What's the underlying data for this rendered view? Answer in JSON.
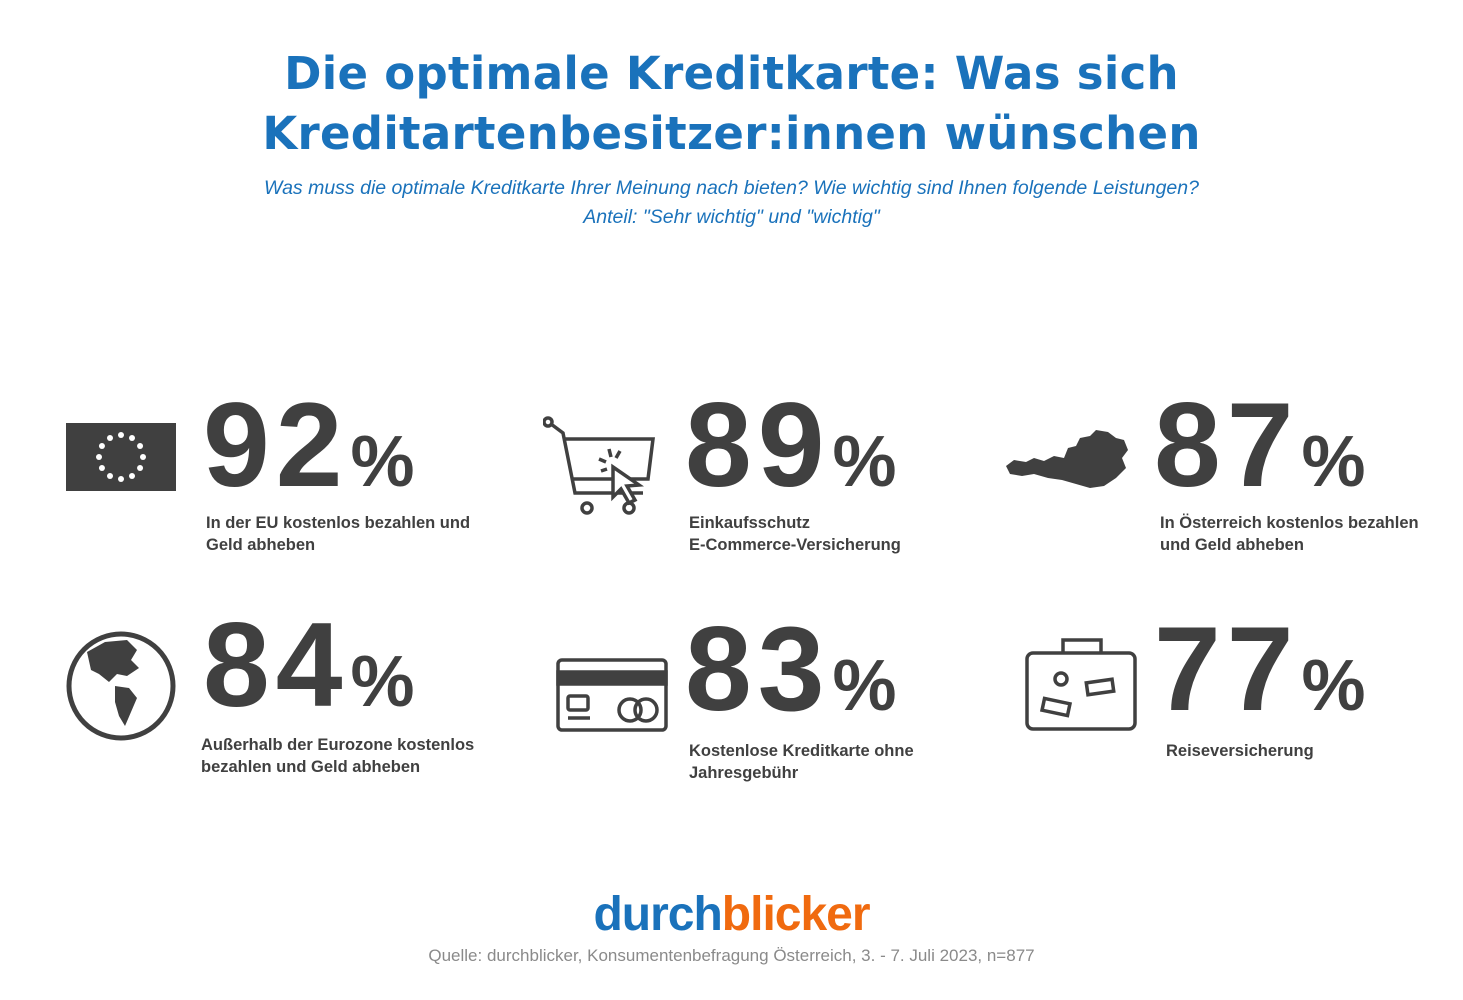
{
  "header": {
    "title_line1": "Die optimale Kreditkarte: Was sich",
    "title_line2": "Kreditartenbesitzer:innen wünschen",
    "subtitle_line1": "Was muss die optimale Kreditkarte Ihrer Meinung nach bieten? Wie wichtig sind Ihnen folgende Leistungen?",
    "subtitle_line2": "Anteil: \"Sehr wichtig\" und \"wichtig\""
  },
  "stats": [
    {
      "value": "92",
      "unit": "%",
      "label_line1": "In der EU kostenlos bezahlen und",
      "label_line2": "Geld abheben",
      "icon": "eu-flag-icon"
    },
    {
      "value": "89",
      "unit": "%",
      "label_line1": "Einkaufsschutz",
      "label_line2": "E-Commerce-Versicherung",
      "icon": "shopping-cart-icon"
    },
    {
      "value": "87",
      "unit": "%",
      "label_line1": "In Österreich kostenlos bezahlen",
      "label_line2": "und Geld abheben",
      "icon": "austria-map-icon"
    },
    {
      "value": "84",
      "unit": "%",
      "label_line1": "Außerhalb der Eurozone kostenlos",
      "label_line2": "bezahlen und Geld abheben",
      "icon": "globe-icon"
    },
    {
      "value": "83",
      "unit": "%",
      "label_line1": "Kostenlose Kreditkarte ohne",
      "label_line2": "Jahresgebühr",
      "icon": "credit-card-icon"
    },
    {
      "value": "77",
      "unit": "%",
      "label_line1": "Reiseversicherung",
      "label_line2": "",
      "icon": "suitcase-icon"
    }
  ],
  "footer": {
    "logo_part1": "durch",
    "logo_part2": "blicker",
    "source": "Quelle: durchblicker, Konsumentenbefragung Österreich,  3. - 7. Juli 2023, n=877"
  },
  "colors": {
    "title": "#1a72bb",
    "text": "#404040",
    "logo_blue": "#1a72bb",
    "logo_orange": "#f06a0f",
    "source": "#8a8a8a"
  }
}
